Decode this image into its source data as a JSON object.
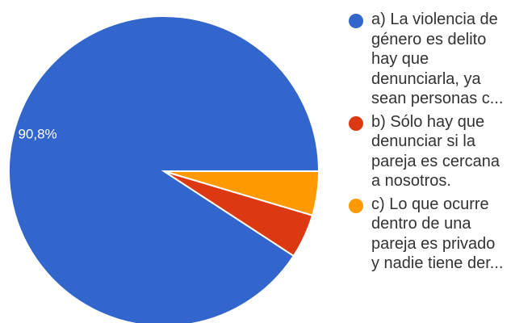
{
  "chart_data": {
    "type": "pie",
    "title": "",
    "slices": [
      {
        "label": "a) La violencia de género es delito hay que denunciarla, ya sean personas c...",
        "value": 90.8,
        "color": "#3366cc",
        "value_label": "90,8%"
      },
      {
        "label": "b) Sólo hay que denunciar si la pareja es cercana a nosotros.",
        "value": 4.6,
        "color": "#dc3912",
        "value_label": ""
      },
      {
        "label": "c) Lo que ocurre dentro de una pareja es privado y nadie tiene der...",
        "value": 4.6,
        "color": "#ff9900",
        "value_label": ""
      }
    ],
    "legend_position": "right"
  },
  "legend": {
    "items": [
      {
        "lines": [
          "a) La violencia de",
          "género es delito",
          "hay que",
          "denunciarla, ya",
          "sean personas c..."
        ],
        "color": "#3366cc"
      },
      {
        "lines": [
          "b) Sólo hay que",
          "denunciar si la",
          "pareja es cercana",
          "a nosotros."
        ],
        "color": "#dc3912"
      },
      {
        "lines": [
          "c) Lo que ocurre",
          "dentro de una",
          "pareja es privado",
          "y nadie tiene der..."
        ],
        "color": "#ff9900"
      }
    ]
  }
}
